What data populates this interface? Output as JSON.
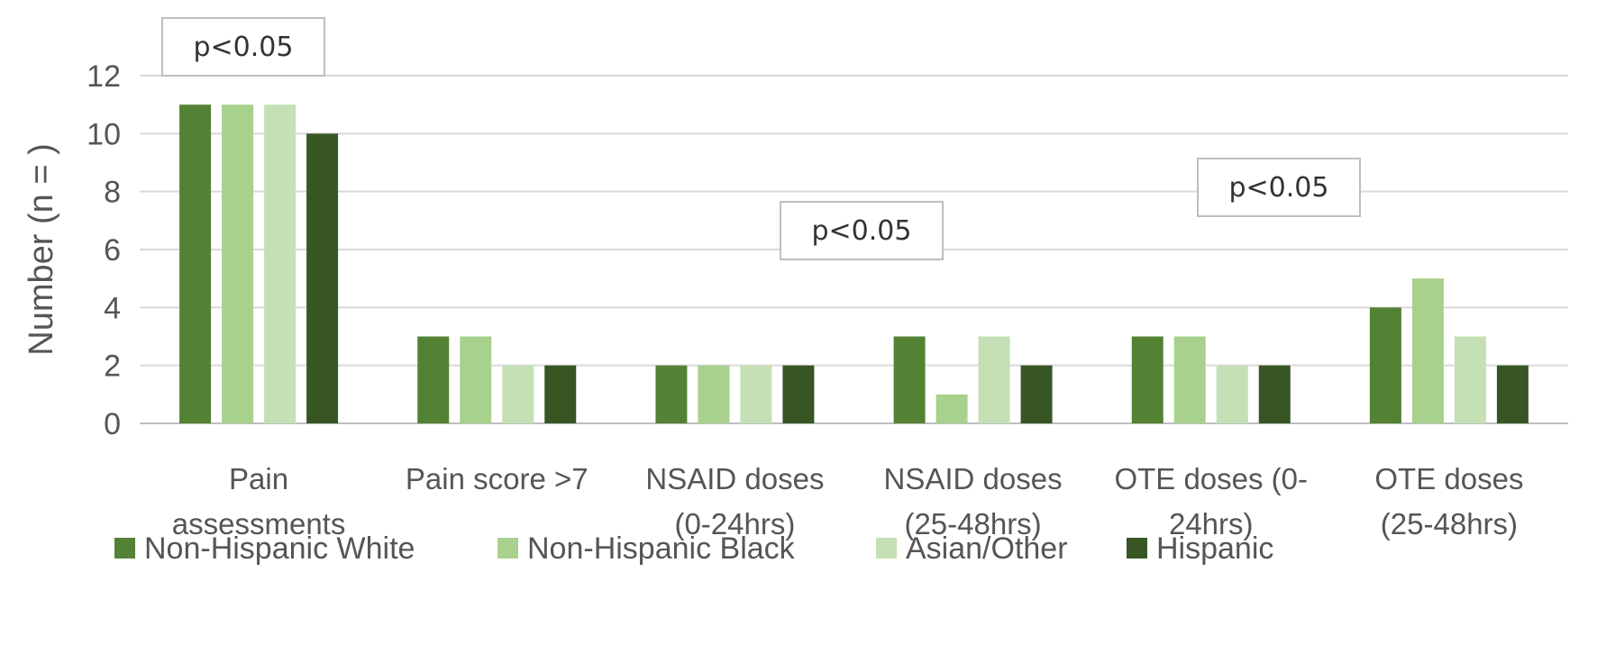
{
  "chart_data": {
    "type": "bar",
    "title": "",
    "xlabel": "",
    "ylabel": "Number (n = )",
    "ylim": [
      0,
      12
    ],
    "yticks": [
      0,
      2,
      4,
      6,
      8,
      10,
      12
    ],
    "grid": true,
    "legend_position": "bottom",
    "categories": [
      [
        "Pain",
        "assessments"
      ],
      [
        "Pain score >7"
      ],
      [
        "NSAID doses",
        "(0-24hrs)"
      ],
      [
        "NSAID doses",
        "(25-48hrs)"
      ],
      [
        "OTE doses (0-",
        "24hrs)"
      ],
      [
        "OTE doses",
        "(25-48hrs)"
      ]
    ],
    "series": [
      {
        "name": "Non-Hispanic White",
        "color": "#548235",
        "values": [
          11,
          3,
          2,
          3,
          3,
          4
        ]
      },
      {
        "name": "Non-Hispanic Black",
        "color": "#a9d18e",
        "values": [
          11,
          3,
          2,
          1,
          3,
          5
        ]
      },
      {
        "name": "Asian/Other",
        "color": "#c5e0b4",
        "values": [
          11,
          2,
          2,
          3,
          2,
          3
        ]
      },
      {
        "name": "Hispanic",
        "color": "#375623",
        "values": [
          10,
          2,
          2,
          2,
          2,
          2
        ]
      }
    ],
    "annotations": [
      {
        "text": "p<0.05",
        "category_index": 0
      },
      {
        "text": "p<0.05",
        "category_index": 3
      },
      {
        "text": "p<0.05",
        "category_index": 5
      }
    ]
  }
}
